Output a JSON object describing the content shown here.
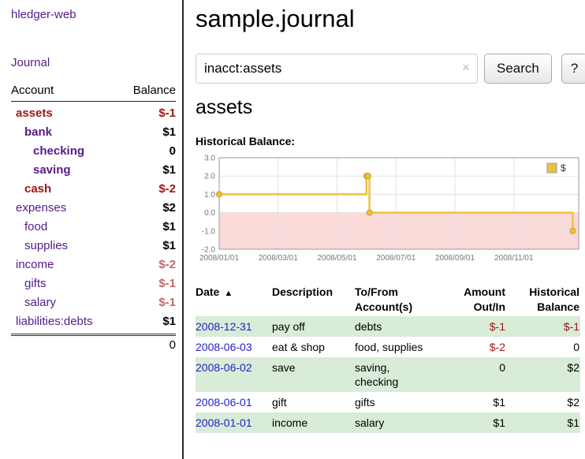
{
  "colors": {
    "link_purple": "#551A8B",
    "negative_strong": "#9e1414",
    "negative_soft": "#c06a6a",
    "date_blue": "#2222cc",
    "row_green": "#d8ecd8",
    "chart_line": "#EDC240",
    "chart_negative_fill": "#fbdada"
  },
  "sidebar": {
    "brand": "hledger-web",
    "journal_link": "Journal",
    "columns": {
      "account": "Account",
      "balance": "Balance"
    },
    "accounts": [
      {
        "name": "assets",
        "balance": "$-1",
        "depth": 1,
        "in_account": true,
        "negative": true
      },
      {
        "name": "bank",
        "balance": "$1",
        "depth": 2,
        "in_account": true,
        "negative": false
      },
      {
        "name": "checking",
        "balance": "0",
        "depth": 3,
        "in_account": true,
        "negative": false
      },
      {
        "name": "saving",
        "balance": "$1",
        "depth": 3,
        "in_account": true,
        "negative": false
      },
      {
        "name": "cash",
        "balance": "$-2",
        "depth": 2,
        "in_account": true,
        "negative": true
      },
      {
        "name": "expenses",
        "balance": "$2",
        "depth": 1,
        "in_account": false,
        "negative": false
      },
      {
        "name": "food",
        "balance": "$1",
        "depth": 2,
        "in_account": false,
        "negative": false
      },
      {
        "name": "supplies",
        "balance": "$1",
        "depth": 2,
        "in_account": false,
        "negative": false
      },
      {
        "name": "income",
        "balance": "$-2",
        "depth": 1,
        "in_account": false,
        "negative": true
      },
      {
        "name": "gifts",
        "balance": "$-1",
        "depth": 2,
        "in_account": false,
        "negative": true
      },
      {
        "name": "salary",
        "balance": "$-1",
        "depth": 2,
        "in_account": false,
        "negative": true
      },
      {
        "name": "liabilities:debts",
        "balance": "$1",
        "depth": 1,
        "in_account": false,
        "negative": false
      }
    ],
    "total": "0"
  },
  "main": {
    "title": "sample.journal",
    "search": {
      "value": "inacct:assets",
      "clear_icon": "×",
      "search_button": "Search",
      "help_button": "?"
    },
    "account_heading": "assets",
    "chart_title": "Historical Balance:"
  },
  "chart_data": {
    "type": "line",
    "title": "Historical Balance:",
    "legend": {
      "position": "top-right",
      "entries": [
        {
          "label": "$",
          "color": "#EDC240"
        }
      ]
    },
    "x_unit": "months since 2008-01-01",
    "xlim": [
      0,
      12.2
    ],
    "ylim": [
      -2,
      3
    ],
    "grid": true,
    "x_ticks": [
      {
        "x": 0,
        "label": "2008/01/01"
      },
      {
        "x": 2,
        "label": "2008/03/01"
      },
      {
        "x": 4,
        "label": "2008/05/01"
      },
      {
        "x": 6,
        "label": "2008/07/01"
      },
      {
        "x": 8,
        "label": "2008/09/01"
      },
      {
        "x": 10,
        "label": "2008/11/01"
      }
    ],
    "y_ticks": [
      3,
      2,
      1,
      0,
      -1,
      -2
    ],
    "negative_region_color": "#fbdada",
    "series": [
      {
        "name": "$",
        "color": "#EDC240",
        "step": true,
        "points": [
          {
            "date": "2008-01-01",
            "x": 0,
            "y": 1
          },
          {
            "date": "2008-06-01",
            "x": 5.0,
            "y": 2
          },
          {
            "date": "2008-06-02",
            "x": 5.05,
            "y": 2
          },
          {
            "date": "2008-06-03",
            "x": 5.1,
            "y": 0
          },
          {
            "date": "2008-12-31",
            "x": 12.0,
            "y": -1
          }
        ]
      }
    ]
  },
  "register": {
    "headers": {
      "date": "Date",
      "sort_icon": "▲",
      "description": "Description",
      "accounts": "To/From\nAccount(s)",
      "amount": "Amount\nOut/In",
      "balance": "Historical\nBalance"
    },
    "rows": [
      {
        "date": "2008-12-31",
        "description": "pay off",
        "accounts": "debts",
        "amount": "$-1",
        "amount_negative": true,
        "balance": "$-1",
        "balance_negative": true,
        "shaded": true
      },
      {
        "date": "2008-06-03",
        "description": "eat & shop",
        "accounts": "food, supplies",
        "amount": "$-2",
        "amount_negative": true,
        "balance": "0",
        "balance_negative": false,
        "shaded": false
      },
      {
        "date": "2008-06-02",
        "description": "save",
        "accounts": "saving,\nchecking",
        "amount": "0",
        "amount_negative": false,
        "balance": "$2",
        "balance_negative": false,
        "shaded": true
      },
      {
        "date": "2008-06-01",
        "description": "gift",
        "accounts": "gifts",
        "amount": "$1",
        "amount_negative": false,
        "balance": "$2",
        "balance_negative": false,
        "shaded": false
      },
      {
        "date": "2008-01-01",
        "description": "income",
        "accounts": "salary",
        "amount": "$1",
        "amount_negative": false,
        "balance": "$1",
        "balance_negative": false,
        "shaded": true
      }
    ]
  }
}
